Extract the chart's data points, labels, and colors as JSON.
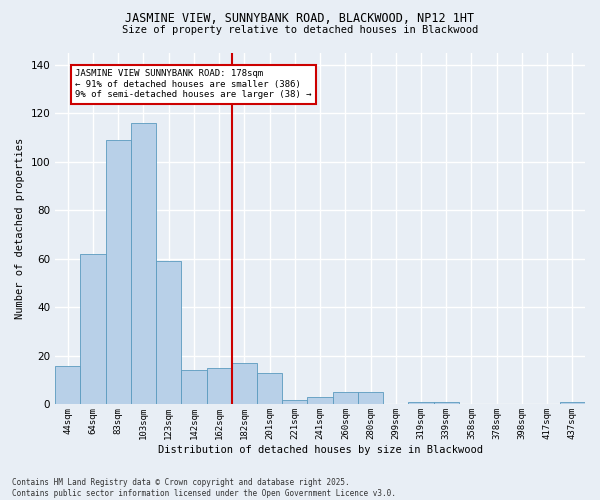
{
  "title": "JASMINE VIEW, SUNNYBANK ROAD, BLACKWOOD, NP12 1HT",
  "subtitle": "Size of property relative to detached houses in Blackwood",
  "xlabel": "Distribution of detached houses by size in Blackwood",
  "ylabel": "Number of detached properties",
  "categories": [
    "44sqm",
    "64sqm",
    "83sqm",
    "103sqm",
    "123sqm",
    "142sqm",
    "162sqm",
    "182sqm",
    "201sqm",
    "221sqm",
    "241sqm",
    "260sqm",
    "280sqm",
    "299sqm",
    "319sqm",
    "339sqm",
    "358sqm",
    "378sqm",
    "398sqm",
    "417sqm",
    "437sqm"
  ],
  "values": [
    16,
    62,
    109,
    116,
    59,
    14,
    15,
    17,
    13,
    2,
    3,
    5,
    5,
    0,
    1,
    1,
    0,
    0,
    0,
    0,
    1
  ],
  "bar_color": "#b8d0e8",
  "bar_edge_color": "#5a9abf",
  "vline_x_index": 7,
  "marker_label": "JASMINE VIEW SUNNYBANK ROAD: 178sqm",
  "annotation_line1": "← 91% of detached houses are smaller (386)",
  "annotation_line2": "9% of semi-detached houses are larger (38) →",
  "annotation_box_color": "#ffffff",
  "annotation_box_edge": "#cc0000",
  "vline_color": "#cc0000",
  "ylim": [
    0,
    145
  ],
  "yticks": [
    0,
    20,
    40,
    60,
    80,
    100,
    120,
    140
  ],
  "background_color": "#e8eef5",
  "grid_color": "#ffffff",
  "footer": "Contains HM Land Registry data © Crown copyright and database right 2025.\nContains public sector information licensed under the Open Government Licence v3.0."
}
